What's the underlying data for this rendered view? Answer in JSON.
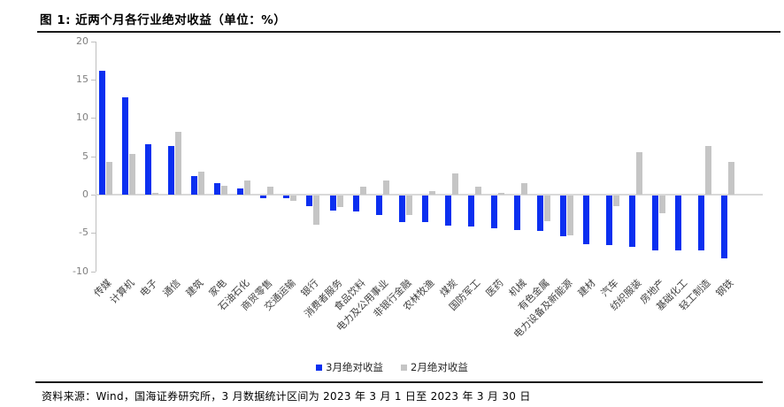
{
  "title": "图 1: 近两个月各行业绝对收益（单位：%）",
  "footer": {
    "source": "资料来源：Wind，国海证券研究所，3 月数据统计区间为 2023 年 3 月 1 日至 2023 年 3 月 30 日"
  },
  "colors": {
    "march_bar": "#0B2FF0",
    "feb_bar": "#C5C5C5",
    "axis_line": "#BFBFBF",
    "zero_line": "#D9D9D9",
    "tick_label": "#7F7F7F",
    "category_label": "#404040",
    "rule": "#1A1A1A"
  },
  "chart_data": {
    "type": "bar",
    "title": "近两个月各行业绝对收益",
    "unit": "%",
    "categories": [
      "传媒",
      "计算机",
      "电子",
      "通信",
      "建筑",
      "家电",
      "石油石化",
      "商贸零售",
      "交通运输",
      "银行",
      "消费者服务",
      "食品饮料",
      "电力及公用事业",
      "非银行金融",
      "农林牧渔",
      "煤炭",
      "国防军工",
      "医药",
      "机械",
      "有色金属",
      "电力设备及新能源",
      "建材",
      "汽车",
      "纺织服装",
      "房地产",
      "基础化工",
      "轻工制造",
      "钢铁"
    ],
    "series": [
      {
        "name": "3月绝对收益",
        "color_key": "march_bar",
        "values": [
          16.2,
          12.7,
          6.6,
          6.4,
          2.4,
          1.5,
          0.8,
          -0.3,
          -0.4,
          -1.4,
          -2.0,
          -2.1,
          -2.5,
          -3.5,
          -3.5,
          -3.9,
          -4.0,
          -4.3,
          -4.5,
          -4.6,
          -5.3,
          -6.4,
          -6.5,
          -6.7,
          -7.1,
          -7.2,
          -7.2,
          -8.2
        ]
      },
      {
        "name": "2月绝对收益",
        "color_key": "feb_bar",
        "values": [
          4.3,
          5.3,
          0.2,
          8.2,
          3.0,
          1.2,
          1.9,
          1.0,
          -0.7,
          -3.8,
          -1.5,
          1.0,
          1.8,
          -2.5,
          0.5,
          2.8,
          1.0,
          0.2,
          1.5,
          -3.4,
          -5.2,
          0.0,
          -1.4,
          5.5,
          -2.3,
          0.0,
          6.4,
          4.3
        ]
      }
    ],
    "ylim": [
      -10,
      20
    ],
    "yticks": [
      20,
      15,
      10,
      5,
      0,
      -5,
      -10
    ],
    "grid": false,
    "legend_position": "bottom"
  }
}
